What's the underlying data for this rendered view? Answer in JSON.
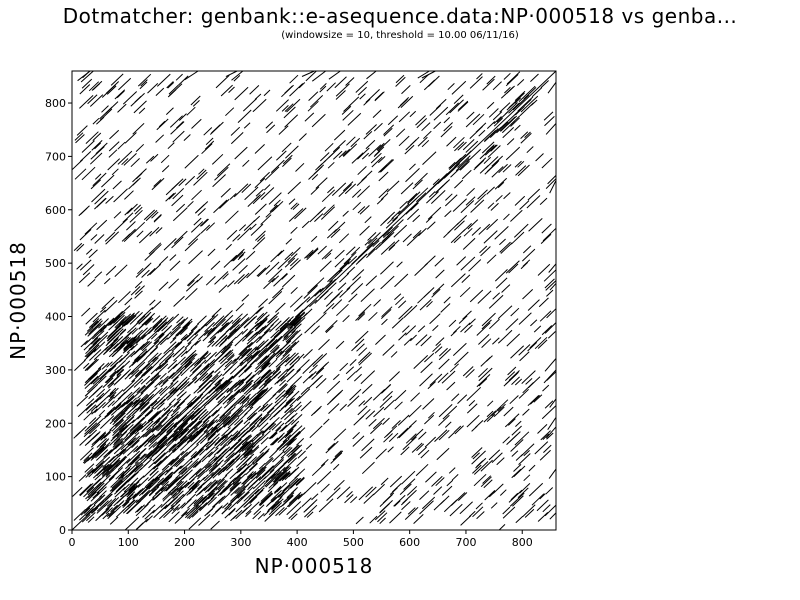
{
  "chart_data": {
    "type": "scatter",
    "title": "Dotmatcher: genbank::e-asequence.data:NP·000518 vs genba...",
    "subtitle": "(windowsize = 10, threshold = 10.00  06/11/16)",
    "xlabel": "NP·000518",
    "ylabel": "NP·000518",
    "xlim": [
      0,
      860
    ],
    "ylim": [
      0,
      860
    ],
    "xticks": [
      0,
      100,
      200,
      300,
      400,
      500,
      600,
      700,
      800
    ],
    "yticks": [
      0,
      100,
      200,
      300,
      400,
      500,
      600,
      700,
      800
    ],
    "grid": false,
    "main_diagonal": {
      "x": [
        0,
        860
      ],
      "y": [
        0,
        860
      ]
    },
    "dense_region": {
      "x": [
        20,
        400
      ],
      "y": [
        20,
        400
      ]
    },
    "segment_length": 10
  },
  "colors": {
    "ink": "#000000",
    "background": "#ffffff"
  }
}
